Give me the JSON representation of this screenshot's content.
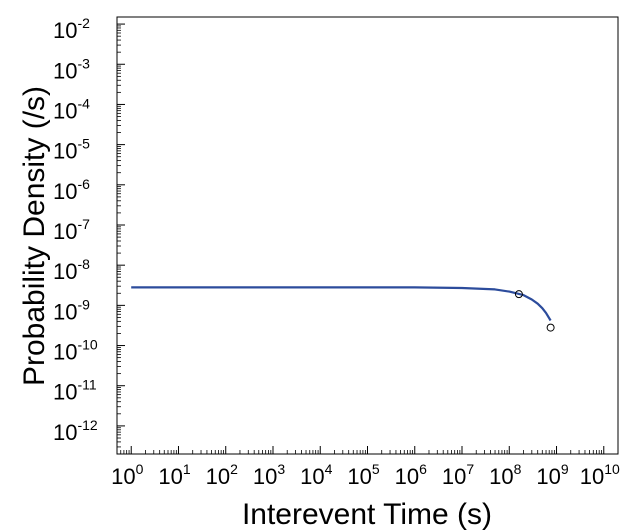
{
  "chart_data": {
    "type": "line",
    "title": "",
    "xlabel": "Interevent Time (s)",
    "ylabel": "Probability Density (/s)",
    "xscale": "log",
    "yscale": "log",
    "xlim": [
      0.5,
      20000000000
    ],
    "ylim": [
      2e-13,
      0.015
    ],
    "x_ticks": [
      {
        "value": 1,
        "label": "10",
        "exp": "0"
      },
      {
        "value": 10,
        "label": "10",
        "exp": "1"
      },
      {
        "value": 100,
        "label": "10",
        "exp": "2"
      },
      {
        "value": 1000,
        "label": "10",
        "exp": "3"
      },
      {
        "value": 10000,
        "label": "10",
        "exp": "4"
      },
      {
        "value": 100000,
        "label": "10",
        "exp": "5"
      },
      {
        "value": 1000000,
        "label": "10",
        "exp": "6"
      },
      {
        "value": 10000000,
        "label": "10",
        "exp": "7"
      },
      {
        "value": 100000000,
        "label": "10",
        "exp": "8"
      },
      {
        "value": 1000000000,
        "label": "10",
        "exp": "9"
      },
      {
        "value": 10000000000,
        "label": "10",
        "exp": "10"
      }
    ],
    "y_ticks": [
      {
        "value": 0.01,
        "label": "10",
        "exp": "-2"
      },
      {
        "value": 0.001,
        "label": "10",
        "exp": "-3"
      },
      {
        "value": 0.0001,
        "label": "10",
        "exp": "-4"
      },
      {
        "value": 1e-05,
        "label": "10",
        "exp": "-5"
      },
      {
        "value": 1e-06,
        "label": "10",
        "exp": "-6"
      },
      {
        "value": 1e-07,
        "label": "10",
        "exp": "-7"
      },
      {
        "value": 1e-08,
        "label": "10",
        "exp": "-8"
      },
      {
        "value": 1e-09,
        "label": "10",
        "exp": "-9"
      },
      {
        "value": 1e-10,
        "label": "10",
        "exp": "-10"
      },
      {
        "value": 1e-11,
        "label": "10",
        "exp": "-11"
      },
      {
        "value": 1e-12,
        "label": "10",
        "exp": "-12"
      }
    ],
    "series": [
      {
        "kind": "line",
        "color": "#2c4c9c",
        "x": [
          1,
          100000,
          1000000,
          10000000,
          50000000,
          100000000,
          200000000,
          300000000,
          400000000,
          500000000,
          600000000,
          750000000
        ],
        "y": [
          2.8e-09,
          2.8e-09,
          2.8e-09,
          2.7e-09,
          2.5e-09,
          2.2e-09,
          1.8e-09,
          1.4e-09,
          1.1e-09,
          8.5e-10,
          6.5e-10,
          4.2e-10
        ]
      },
      {
        "kind": "scatter",
        "marker": "open-circle",
        "color": "#000000",
        "x": [
          160000000,
          750000000
        ],
        "y": [
          1.9e-09,
          2.8e-10
        ]
      }
    ],
    "grid": false,
    "legend": "none"
  }
}
